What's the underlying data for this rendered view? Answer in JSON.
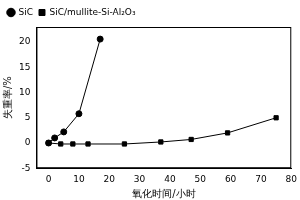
{
  "chart_data": {
    "type": "line",
    "x_label": "氧化时间/小时",
    "y_label": "失重率/%",
    "xlim": [
      -4,
      80
    ],
    "xticks": [
      0,
      10,
      20,
      30,
      40,
      50,
      60,
      70,
      80
    ],
    "ylim": [
      -5,
      23
    ],
    "yticks": [
      -5,
      0,
      5,
      10,
      15,
      20
    ],
    "legend": "top-left",
    "grid": false,
    "series": [
      {
        "name": "SiC",
        "color": "#000000",
        "marker": "circle",
        "line_style": "solid",
        "x": [
          0,
          2,
          5,
          10,
          17
        ],
        "values": [
          0,
          1,
          2.2,
          5.8,
          20.6
        ]
      },
      {
        "name": "SiC/mullite-Si-Al₂O₃",
        "color": "#000000",
        "marker": "square",
        "line_style": "solid",
        "x": [
          0,
          4,
          8,
          13,
          25,
          37,
          47,
          59,
          75
        ],
        "values": [
          0,
          -0.2,
          -0.2,
          -0.2,
          -0.2,
          0.2,
          0.7,
          2.0,
          5.0
        ]
      }
    ]
  }
}
